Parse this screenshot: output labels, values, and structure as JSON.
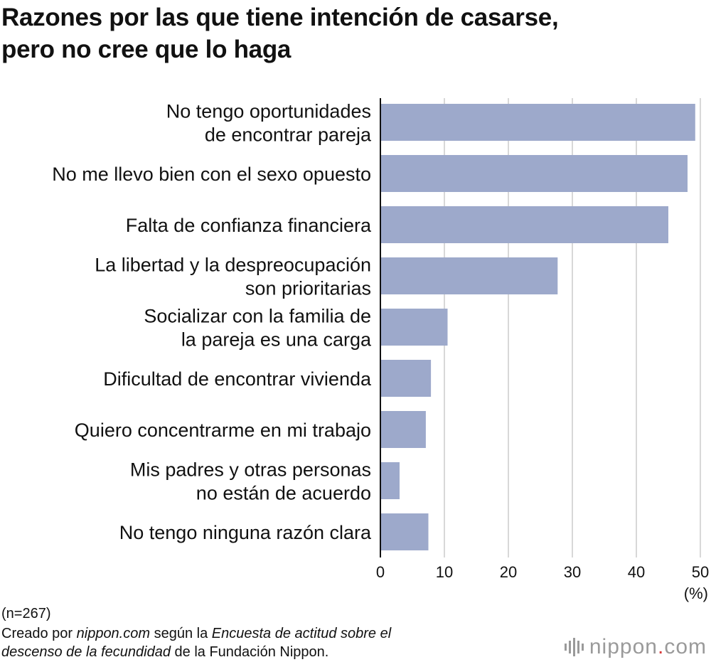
{
  "chart_data": {
    "type": "bar",
    "orientation": "horizontal",
    "title_lines": [
      "Razones por las que tiene intención de casarse,",
      "pero no cree que lo haga"
    ],
    "categories": [
      [
        "No tengo oportunidades",
        "de encontrar pareja"
      ],
      [
        "No me llevo bien con el sexo opuesto"
      ],
      [
        "Falta de confianza financiera"
      ],
      [
        "La libertad y la despreocupación",
        "son prioritarias"
      ],
      [
        "Socializar con la familia de",
        "la pareja es una carga"
      ],
      [
        "Dificultad de encontrar vivienda"
      ],
      [
        "Quiero concentrarme en mi trabajo"
      ],
      [
        "Mis padres y otras personas",
        "no están de acuerdo"
      ],
      [
        "No tengo ninguna razón clara"
      ]
    ],
    "values": [
      49.2,
      48.0,
      45.0,
      27.7,
      10.5,
      7.9,
      7.1,
      3.0,
      7.5
    ],
    "xlim": [
      0,
      50
    ],
    "xticks": [
      0,
      10,
      20,
      30,
      40,
      50
    ],
    "xtick_labels": [
      "0",
      "10",
      "20",
      "30",
      "40",
      "50"
    ],
    "unit_label": "(%)",
    "grid": true,
    "bar_color": "#9da9cb",
    "grid_color": "#cccccc",
    "axis_color": "#111111"
  },
  "footer": {
    "sample": "(n=267)",
    "source_prefix": "Creado por ",
    "source_site": "nippon.com",
    "source_mid": " según la ",
    "source_survey_a": "Encuesta de actitud sobre el",
    "source_survey_b": "descenso de la fecundidad",
    "source_suffix": " de la Fundación Nippon."
  },
  "brand": {
    "name": "nippon",
    "dot": ".",
    "tld": "com",
    "accent": "#d83a3a"
  }
}
